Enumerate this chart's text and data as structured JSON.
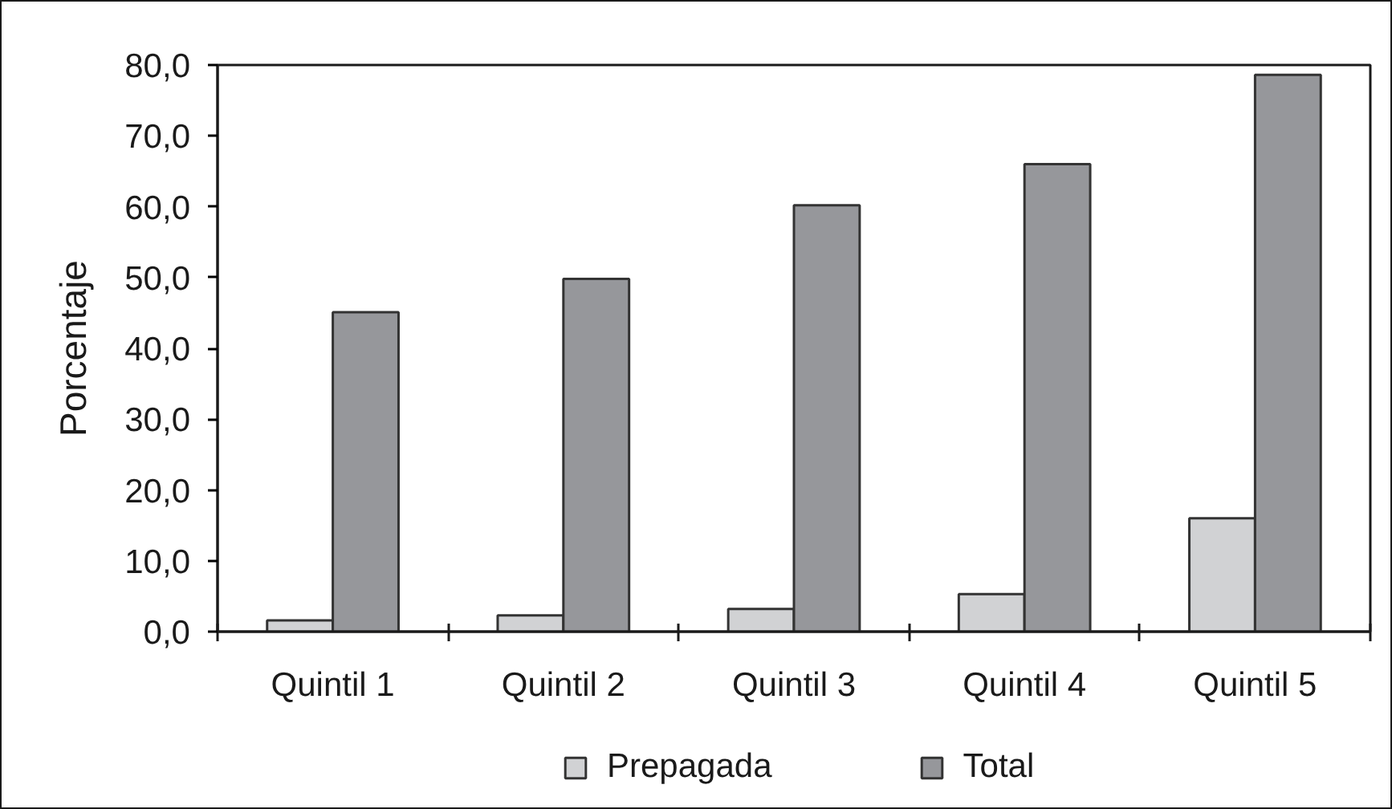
{
  "chart_data": {
    "type": "bar",
    "categories": [
      "Quintil 1",
      "Quintil 2",
      "Quintil 3",
      "Quintil 4",
      "Quintil 5"
    ],
    "series": [
      {
        "name": "Prepagada",
        "color": "#d1d2d4",
        "values": [
          1.6,
          2.3,
          3.2,
          5.3,
          16.0
        ]
      },
      {
        "name": "Total",
        "color": "#96979b",
        "values": [
          45.1,
          49.8,
          60.2,
          66.0,
          78.6
        ]
      }
    ],
    "ylabel": "Porcentaje",
    "ylim": [
      0,
      80
    ],
    "yticks": [
      {
        "value": 0,
        "label": "0,0"
      },
      {
        "value": 10,
        "label": "10,0"
      },
      {
        "value": 20,
        "label": "20,0"
      },
      {
        "value": 30,
        "label": "30,0"
      },
      {
        "value": 40,
        "label": "40,0"
      },
      {
        "value": 50,
        "label": "50,0"
      },
      {
        "value": 60,
        "label": "60,0"
      },
      {
        "value": 70,
        "label": "70,0"
      },
      {
        "value": 80,
        "label": "80,0"
      }
    ],
    "legend": "bottom"
  }
}
